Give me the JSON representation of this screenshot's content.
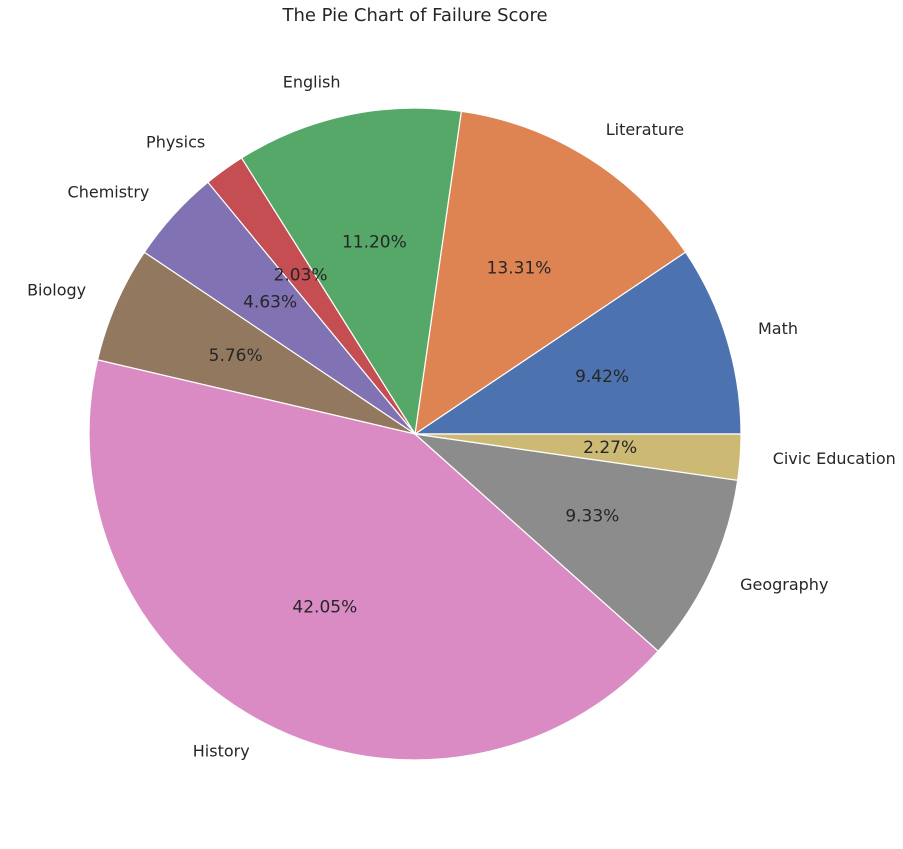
{
  "chart_data": {
    "type": "pie",
    "title": "The Pie Chart of Failure Score",
    "categories": [
      "Math",
      "Literature",
      "English",
      "Physics",
      "Chemistry",
      "Biology",
      "History",
      "Geography",
      "Civic Education"
    ],
    "values": [
      9.42,
      13.31,
      11.2,
      2.03,
      4.63,
      5.76,
      42.05,
      9.33,
      2.27
    ],
    "value_labels": [
      "9.42%",
      "13.31%",
      "11.20%",
      "2.03%",
      "4.63%",
      "5.76%",
      "42.05%",
      "9.33%",
      "2.27%"
    ],
    "colors": [
      "#4c72b0",
      "#dd8452",
      "#55a868",
      "#c44e52",
      "#8172b3",
      "#937860",
      "#da8bc3",
      "#8c8c8c",
      "#ccb974"
    ],
    "start_angle_deg": 0,
    "direction": "counterclockwise",
    "legend": "none"
  }
}
